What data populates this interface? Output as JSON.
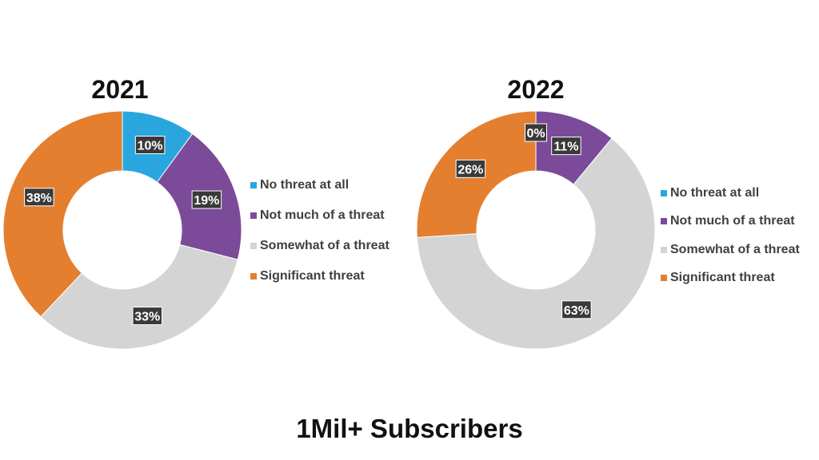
{
  "footer_title": "1Mil+ Subscribers",
  "colors": {
    "no_threat": "#2aa6de",
    "not_much": "#7b4b9a",
    "somewhat": "#d4d4d4",
    "significant": "#e47f30",
    "label_bg": "#3a3a3a",
    "label_text": "#ffffff"
  },
  "chart_data": [
    {
      "type": "pie",
      "title": "2021",
      "categories": [
        "No threat at all",
        "Not much of a threat",
        "Somewhat of a threat",
        "Significant threat"
      ],
      "values": [
        10,
        19,
        33,
        38
      ],
      "labels": [
        "10%",
        "19%",
        "33%",
        "38%"
      ],
      "donut": true,
      "legend_position": "right"
    },
    {
      "type": "pie",
      "title": "2022",
      "categories": [
        "No threat at all",
        "Not much of a threat",
        "Somewhat of a threat",
        "Significant threat"
      ],
      "values": [
        0,
        11,
        63,
        26
      ],
      "labels": [
        "0%",
        "11%",
        "63%",
        "26%"
      ],
      "donut": true,
      "legend_position": "right"
    }
  ]
}
